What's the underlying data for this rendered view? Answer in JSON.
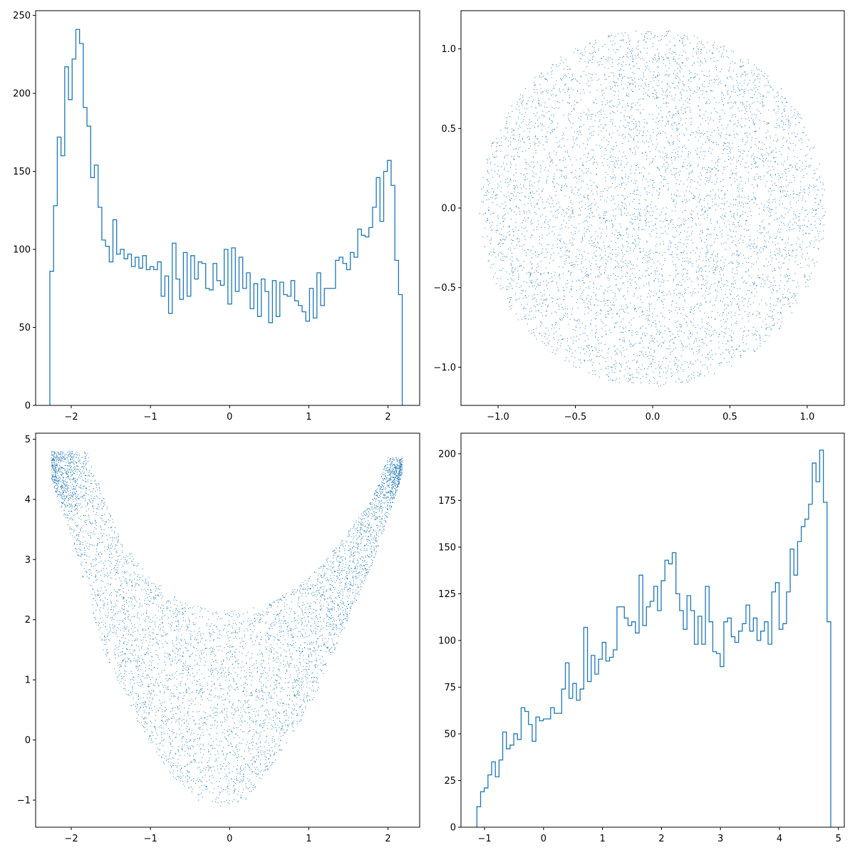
{
  "figure": {
    "background": "#ffffff",
    "series_color": "#1f77b4"
  },
  "chart_data": [
    {
      "type": "histogram-step",
      "title": "",
      "xlabel": "",
      "ylabel": "",
      "xlim": [
        -2.45,
        2.4
      ],
      "ylim": [
        0,
        253
      ],
      "xticks": [
        -2,
        -1,
        0,
        1,
        2
      ],
      "yticks": [
        0,
        50,
        100,
        150,
        200,
        250
      ],
      "bin_range": [
        -2.27,
        2.18
      ],
      "values": [
        86,
        128,
        172,
        160,
        217,
        196,
        222,
        241,
        232,
        191,
        179,
        146,
        154,
        127,
        106,
        102,
        92,
        119,
        97,
        100,
        94,
        97,
        89,
        95,
        88,
        96,
        87,
        89,
        87,
        92,
        70,
        83,
        59,
        104,
        81,
        68,
        98,
        70,
        96,
        81,
        92,
        91,
        75,
        74,
        91,
        80,
        77,
        100,
        65,
        101,
        73,
        95,
        75,
        85,
        62,
        78,
        57,
        81,
        73,
        53,
        80,
        57,
        79,
        71,
        70,
        80,
        67,
        64,
        60,
        54,
        75,
        56,
        85,
        64,
        75,
        75,
        75,
        93,
        95,
        91,
        87,
        98,
        95,
        113,
        109,
        108,
        114,
        127,
        146,
        118,
        150,
        157,
        141,
        93,
        71
      ]
    },
    {
      "type": "scatter",
      "title": "",
      "xlabel": "",
      "ylabel": "",
      "xlim": [
        -1.24,
        1.24
      ],
      "ylim": [
        -1.24,
        1.24
      ],
      "xticks": [
        -1.0,
        -0.5,
        0.0,
        0.5,
        1.0
      ],
      "yticks": [
        -1.0,
        -0.5,
        0.0,
        0.5,
        1.0
      ],
      "shape": "disk",
      "center": [
        0,
        0
      ],
      "radius": 1.12,
      "n_points": 6000
    },
    {
      "type": "scatter",
      "title": "",
      "xlabel": "",
      "ylabel": "",
      "xlim": [
        -2.45,
        2.4
      ],
      "ylim": [
        -1.45,
        5.1
      ],
      "xticks": [
        -2,
        -1,
        0,
        1,
        2
      ],
      "yticks": [
        -1,
        0,
        1,
        2,
        3,
        4,
        5
      ],
      "shape": "u-band",
      "x_range": [
        -2.25,
        2.18
      ],
      "lower_edge": [
        [
          -2.25,
          4.3
        ],
        [
          -2.0,
          3.4
        ],
        [
          -1.6,
          1.5
        ],
        [
          -1.2,
          0.4
        ],
        [
          -0.8,
          -0.5
        ],
        [
          -0.4,
          -1.0
        ],
        [
          -0.1,
          -1.12
        ],
        [
          0.2,
          -1.0
        ],
        [
          0.6,
          -0.3
        ],
        [
          1.0,
          0.5
        ],
        [
          1.4,
          1.7
        ],
        [
          1.8,
          2.9
        ],
        [
          2.18,
          4.4
        ]
      ],
      "upper_edge": [
        [
          -2.25,
          4.8
        ],
        [
          -1.8,
          4.8
        ],
        [
          -1.4,
          3.4
        ],
        [
          -1.0,
          2.7
        ],
        [
          -0.6,
          2.3
        ],
        [
          -0.2,
          2.15
        ],
        [
          0.2,
          2.15
        ],
        [
          0.6,
          2.35
        ],
        [
          1.0,
          2.7
        ],
        [
          1.4,
          3.3
        ],
        [
          1.8,
          4.0
        ],
        [
          2.0,
          4.7
        ],
        [
          2.18,
          4.7
        ]
      ],
      "n_points": 6000
    },
    {
      "type": "histogram-step",
      "title": "",
      "xlabel": "",
      "ylabel": "",
      "xlim": [
        -1.4,
        5.1
      ],
      "ylim": [
        0,
        211
      ],
      "xticks": [
        -1,
        0,
        1,
        2,
        3,
        4,
        5
      ],
      "yticks": [
        0,
        25,
        50,
        75,
        100,
        125,
        150,
        175,
        200
      ],
      "bin_range": [
        -1.13,
        4.87
      ],
      "values": [
        11,
        19,
        21,
        28,
        35,
        27,
        36,
        51,
        42,
        44,
        50,
        47,
        64,
        62,
        55,
        46,
        59,
        57,
        58,
        58,
        64,
        61,
        61,
        74,
        88,
        69,
        77,
        68,
        74,
        107,
        78,
        92,
        82,
        90,
        99,
        89,
        91,
        95,
        118,
        118,
        112,
        108,
        110,
        104,
        135,
        108,
        118,
        121,
        129,
        116,
        132,
        143,
        141,
        147,
        125,
        116,
        106,
        124,
        116,
        98,
        113,
        98,
        129,
        110,
        94,
        93,
        86,
        110,
        112,
        102,
        99,
        105,
        109,
        119,
        105,
        112,
        100,
        105,
        110,
        98,
        126,
        131,
        106,
        109,
        126,
        149,
        135,
        153,
        161,
        165,
        173,
        195,
        185,
        202,
        174,
        110
      ]
    }
  ]
}
